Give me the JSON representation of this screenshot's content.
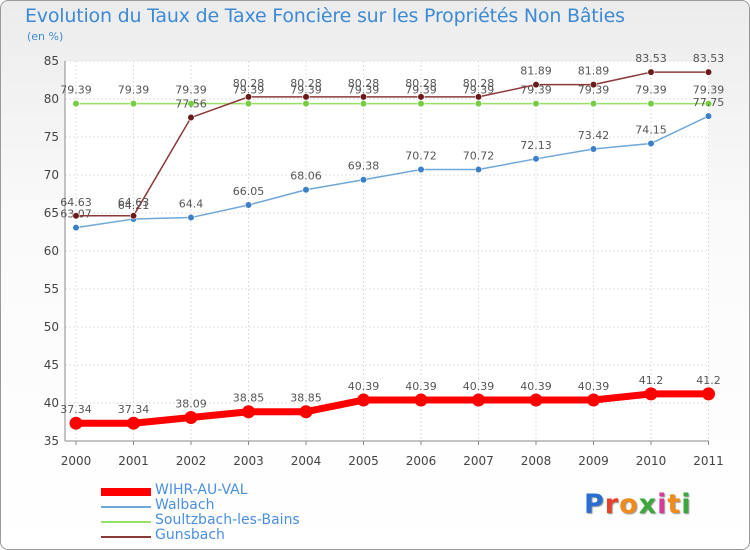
{
  "title": "Evolution du Taux de Taxe Foncière sur les Propriétés Non Bâties",
  "subtitle": "(en %)",
  "logo": {
    "text": "Proxiti",
    "colors": [
      "#2a6fd0",
      "#e8402a",
      "#f08a1c",
      "#3aa83a",
      "#d63a9a"
    ]
  },
  "chart_data": {
    "type": "line",
    "title": "Evolution du Taux de Taxe Foncière sur les Propriétés Non Bâties",
    "ylabel": "(en %)",
    "xlabel": "",
    "x": [
      "2000",
      "2001",
      "2002",
      "2003",
      "2004",
      "2005",
      "2006",
      "2007",
      "2008",
      "2009",
      "2010",
      "2011"
    ],
    "ylim": [
      35,
      85
    ],
    "yticks": [
      35,
      40,
      45,
      50,
      55,
      60,
      65,
      70,
      75,
      80,
      85
    ],
    "grid": true,
    "legend_position": "bottom-left",
    "series": [
      {
        "name": "WIHR-AU-VAL",
        "color": "#ff0000",
        "emphasis": true,
        "values": [
          37.34,
          37.34,
          38.09,
          38.85,
          38.85,
          40.39,
          40.39,
          40.39,
          40.39,
          40.39,
          41.2,
          41.2
        ],
        "labels": [
          "37.34",
          "37.34",
          "38.09",
          "38.85",
          "38.85",
          "40.39",
          "40.39",
          "40.39",
          "40.39",
          "40.39",
          "41.2",
          "41.2"
        ]
      },
      {
        "name": "Walbach",
        "color": "#6fa7d8",
        "marker": "#3a7fc8",
        "values": [
          63.07,
          64.21,
          64.4,
          66.05,
          68.06,
          69.38,
          70.72,
          70.72,
          72.13,
          73.42,
          74.15,
          77.75
        ],
        "labels": [
          "63.07",
          "64.21",
          "64.4",
          "66.05",
          "68.06",
          "69.38",
          "70.72",
          "70.72",
          "72.13",
          "73.42",
          "74.15",
          "77.75"
        ]
      },
      {
        "name": "Soultzbach-les-Bains",
        "color": "#99e066",
        "marker": "#77cc44",
        "values": [
          79.39,
          79.39,
          79.39,
          79.39,
          79.39,
          79.39,
          79.39,
          79.39,
          79.39,
          79.39,
          79.39,
          79.39
        ],
        "labels": [
          "79.39",
          "79.39",
          "79.39",
          "79.39",
          "79.39",
          "79.39",
          "79.39",
          "79.39",
          "79.39",
          "79.39",
          "79.39",
          "79.39"
        ]
      },
      {
        "name": "Gunsbach",
        "color": "#8b3a3a",
        "marker": "#6a1a1a",
        "values": [
          64.63,
          64.63,
          77.56,
          80.28,
          80.28,
          80.28,
          80.28,
          80.28,
          81.89,
          81.89,
          83.53,
          83.53
        ],
        "labels": [
          "64.63",
          "64.63",
          "77.56",
          "80.28",
          "80.28",
          "80.28",
          "80.28",
          "80.28",
          "81.89",
          "81.89",
          "83.53",
          "83.53"
        ]
      }
    ]
  }
}
